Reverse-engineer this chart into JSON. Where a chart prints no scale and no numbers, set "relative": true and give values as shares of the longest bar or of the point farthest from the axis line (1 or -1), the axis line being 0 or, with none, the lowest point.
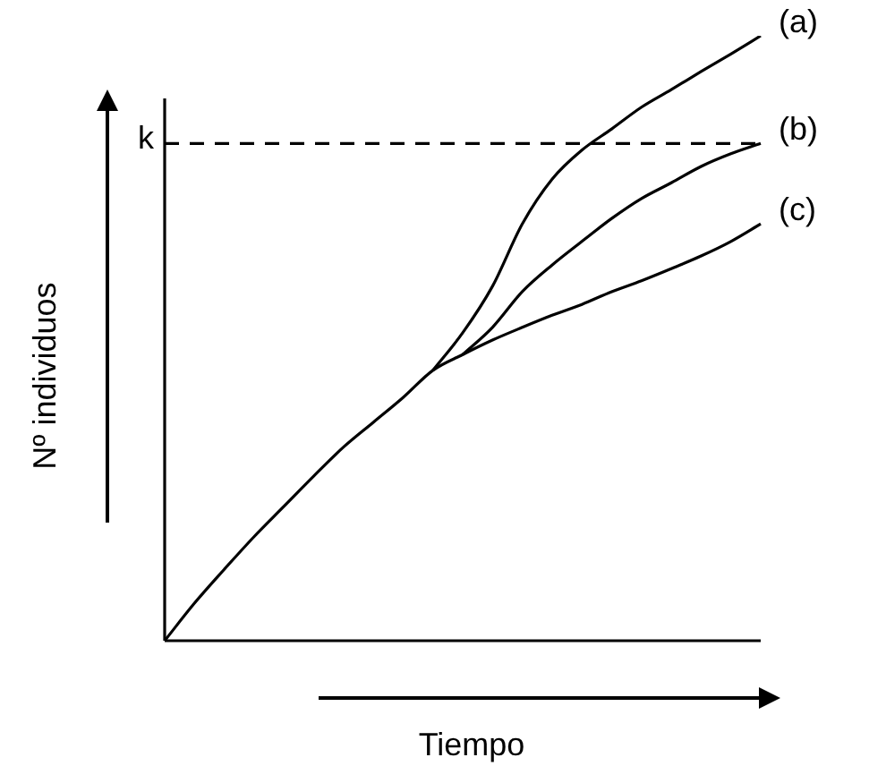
{
  "chart_data": {
    "type": "line",
    "relative": true,
    "xlabel": "Tiempo",
    "ylabel": "Nº individuos",
    "marker": "none",
    "categories": [
      null,
      null,
      null,
      null,
      null,
      null,
      null,
      null,
      null,
      null,
      null,
      null,
      null,
      null,
      null,
      null,
      null,
      null,
      null,
      null,
      null
    ],
    "series": [
      {
        "name": "(a)",
        "color": "#000000",
        "values": [
          null,
          null,
          null,
          null,
          null,
          null,
          null,
          null,
          null,
          0.447,
          0.509,
          0.586,
          0.689,
          0.763,
          0.811,
          0.846,
          0.882,
          0.911,
          0.941,
          0.97,
          1
        ]
      },
      {
        "name": "(b)",
        "color": "#000000",
        "values": [
          null,
          null,
          null,
          null,
          null,
          null,
          null,
          null,
          null,
          null,
          0.473,
          0.518,
          0.577,
          0.621,
          0.66,
          0.698,
          0.731,
          0.757,
          0.784,
          0.805,
          0.822
        ]
      },
      {
        "name": "(c)",
        "color": "#000000",
        "values": [
          0,
          0.062,
          0.118,
          0.172,
          0.222,
          0.272,
          0.32,
          0.361,
          0.402,
          0.447,
          0.473,
          0.497,
          0.518,
          0.538,
          0.556,
          0.577,
          0.595,
          0.615,
          0.636,
          0.66,
          0.689
        ]
      }
    ],
    "ref_lines": [
      {
        "axis": "y",
        "value": 0.822,
        "label": "k",
        "color": "#000000",
        "line_style": "dashed"
      }
    ]
  }
}
